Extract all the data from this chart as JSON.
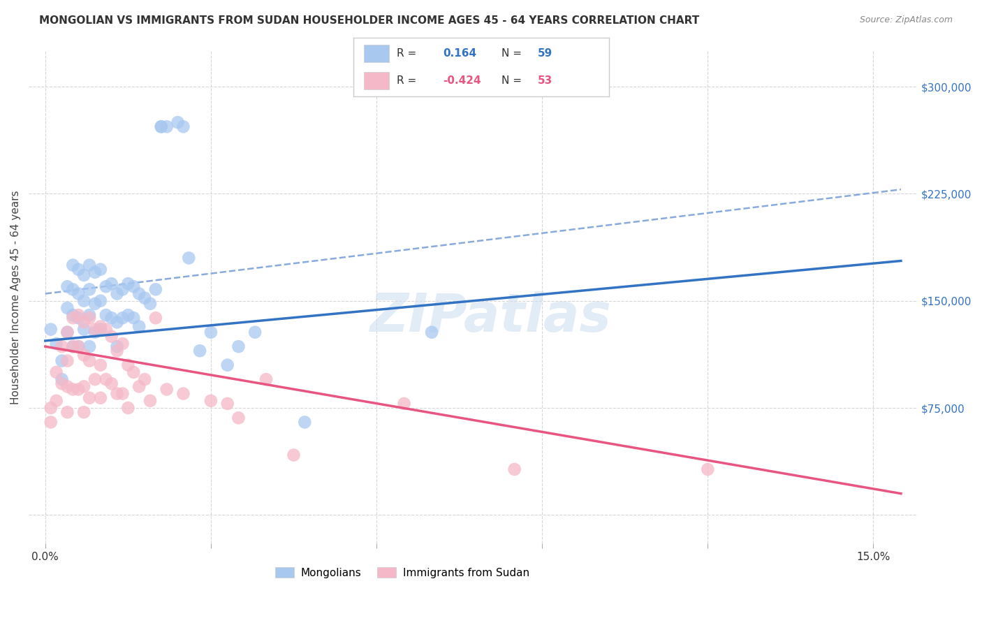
{
  "title": "MONGOLIAN VS IMMIGRANTS FROM SUDAN HOUSEHOLDER INCOME AGES 45 - 64 YEARS CORRELATION CHART",
  "source": "Source: ZipAtlas.com",
  "xlabel_ticks": [
    0.0,
    0.03,
    0.06,
    0.09,
    0.12,
    0.15
  ],
  "xlabel_ticklabels": [
    "0.0%",
    "",
    "",
    "",
    "",
    "15.0%"
  ],
  "ylabel_ticks": [
    0,
    75000,
    150000,
    225000,
    300000
  ],
  "ylabel_ticklabels": [
    "",
    "$75,000",
    "$150,000",
    "$225,000",
    "$300,000"
  ],
  "xlim": [
    -0.003,
    0.158
  ],
  "ylim": [
    -20000,
    325000
  ],
  "mongolian_color": "#a8c8f0",
  "sudan_color": "#f5b8c8",
  "mongolian_line_color": "#3373c4",
  "sudan_line_color": "#e85580",
  "dashed_line_color": "#88aadd",
  "legend_R_mongolian": "0.164",
  "legend_N_mongolian": "59",
  "legend_R_sudan": "-0.424",
  "legend_N_sudan": "53",
  "ylabel": "Householder Income Ages 45 - 64 years",
  "watermark": "ZIPatlas",
  "mongolian_trend_x0": 0.0,
  "mongolian_trend_y0": 122000,
  "mongolian_trend_x1": 0.155,
  "mongolian_trend_y1": 178000,
  "dashed_trend_x0": 0.0,
  "dashed_trend_y0": 155000,
  "dashed_trend_x1": 0.155,
  "dashed_trend_y1": 228000,
  "sudan_trend_x0": 0.0,
  "sudan_trend_y0": 118000,
  "sudan_trend_x1": 0.155,
  "sudan_trend_y1": 15000,
  "mongolian_x": [
    0.001,
    0.002,
    0.003,
    0.003,
    0.004,
    0.004,
    0.004,
    0.005,
    0.005,
    0.005,
    0.005,
    0.006,
    0.006,
    0.006,
    0.006,
    0.007,
    0.007,
    0.007,
    0.008,
    0.008,
    0.008,
    0.008,
    0.009,
    0.009,
    0.009,
    0.01,
    0.01,
    0.01,
    0.011,
    0.011,
    0.012,
    0.012,
    0.013,
    0.013,
    0.013,
    0.014,
    0.014,
    0.015,
    0.015,
    0.016,
    0.016,
    0.017,
    0.017,
    0.018,
    0.019,
    0.02,
    0.021,
    0.021,
    0.022,
    0.024,
    0.025,
    0.026,
    0.028,
    0.03,
    0.033,
    0.035,
    0.038,
    0.047,
    0.07
  ],
  "mongolian_y": [
    130000,
    120000,
    108000,
    95000,
    160000,
    145000,
    128000,
    175000,
    158000,
    140000,
    118000,
    172000,
    155000,
    138000,
    118000,
    168000,
    150000,
    130000,
    175000,
    158000,
    140000,
    118000,
    170000,
    148000,
    128000,
    172000,
    150000,
    130000,
    160000,
    140000,
    162000,
    138000,
    155000,
    135000,
    118000,
    158000,
    138000,
    162000,
    140000,
    160000,
    138000,
    155000,
    132000,
    152000,
    148000,
    158000,
    272000,
    272000,
    272000,
    275000,
    272000,
    180000,
    115000,
    128000,
    105000,
    118000,
    128000,
    65000,
    128000
  ],
  "sudan_x": [
    0.001,
    0.001,
    0.002,
    0.002,
    0.003,
    0.003,
    0.004,
    0.004,
    0.004,
    0.004,
    0.005,
    0.005,
    0.005,
    0.006,
    0.006,
    0.006,
    0.007,
    0.007,
    0.007,
    0.007,
    0.008,
    0.008,
    0.008,
    0.009,
    0.009,
    0.01,
    0.01,
    0.01,
    0.011,
    0.011,
    0.012,
    0.012,
    0.013,
    0.013,
    0.014,
    0.014,
    0.015,
    0.015,
    0.016,
    0.017,
    0.018,
    0.019,
    0.02,
    0.022,
    0.025,
    0.03,
    0.033,
    0.035,
    0.04,
    0.045,
    0.065,
    0.085,
    0.12
  ],
  "sudan_y": [
    75000,
    65000,
    100000,
    80000,
    118000,
    92000,
    128000,
    108000,
    90000,
    72000,
    138000,
    118000,
    88000,
    140000,
    118000,
    88000,
    135000,
    112000,
    90000,
    72000,
    138000,
    108000,
    82000,
    130000,
    95000,
    132000,
    105000,
    82000,
    130000,
    95000,
    125000,
    92000,
    115000,
    85000,
    120000,
    85000,
    105000,
    75000,
    100000,
    90000,
    95000,
    80000,
    138000,
    88000,
    85000,
    80000,
    78000,
    68000,
    95000,
    42000,
    78000,
    32000,
    32000
  ]
}
